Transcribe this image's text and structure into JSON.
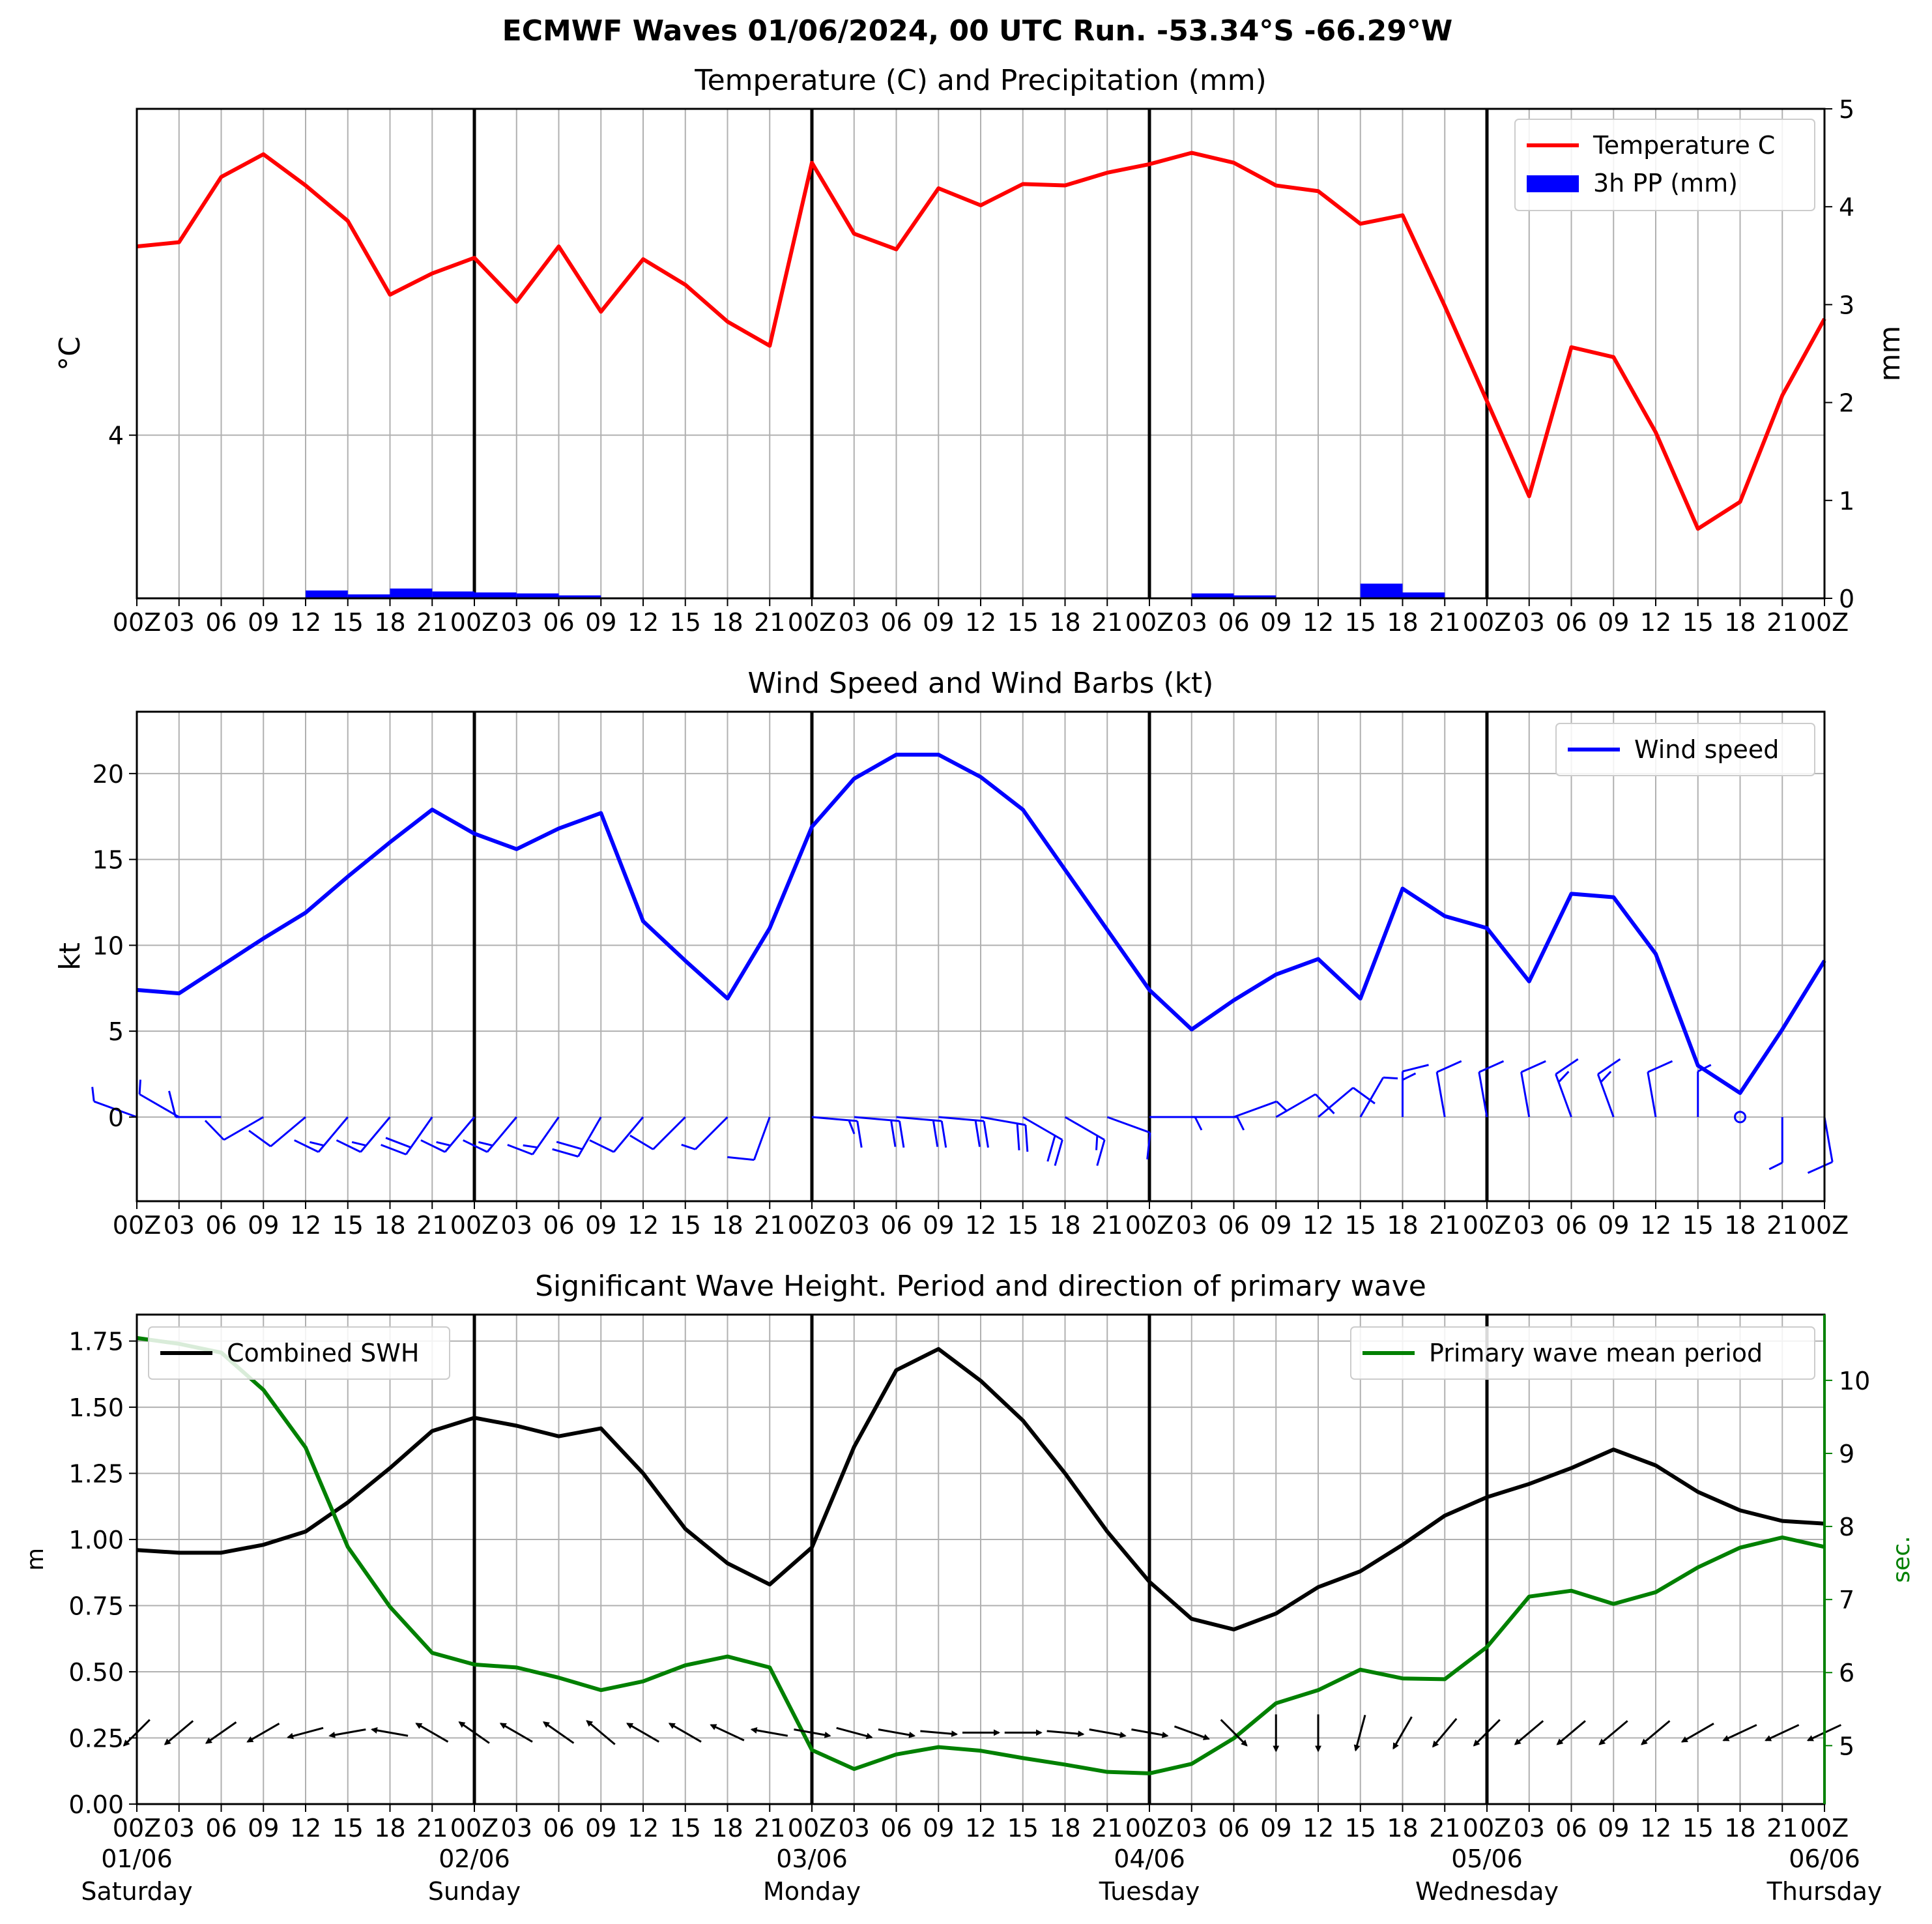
{
  "title": "ECMWF Waves 01/06/2024, 00 UTC Run. -53.34°S -66.29°W",
  "time_tick_labels": [
    "00Z",
    "03",
    "06",
    "09",
    "12",
    "15",
    "18",
    "21",
    "00Z",
    "03",
    "06",
    "09",
    "12",
    "15",
    "18",
    "21",
    "00Z",
    "03",
    "06",
    "09",
    "12",
    "15",
    "18",
    "21",
    "00Z",
    "03",
    "06",
    "09",
    "12",
    "15",
    "18",
    "21",
    "00Z",
    "03",
    "06",
    "09",
    "12",
    "15",
    "18",
    "21",
    "00Z"
  ],
  "day_labels": [
    {
      "hour": 0,
      "date": "01/06",
      "weekday": "Saturday"
    },
    {
      "hour": 24,
      "date": "02/06",
      "weekday": "Sunday"
    },
    {
      "hour": 48,
      "date": "03/06",
      "weekday": "Monday"
    },
    {
      "hour": 72,
      "date": "04/06",
      "weekday": "Tuesday"
    },
    {
      "hour": 96,
      "date": "05/06",
      "weekday": "Wednesday"
    },
    {
      "hour": 120,
      "date": "06/06",
      "weekday": "Thursday"
    }
  ],
  "chart_data": [
    {
      "type": "line",
      "title": "Temperature (C) and Precipitation (mm)",
      "ylabel": "°C",
      "ylabel_right": "mm",
      "x_hours": [
        0,
        3,
        6,
        9,
        12,
        15,
        18,
        21,
        24,
        27,
        30,
        33,
        36,
        39,
        42,
        45,
        48,
        51,
        54,
        57,
        60,
        63,
        66,
        69,
        72,
        75,
        78,
        81,
        84,
        87,
        90,
        93,
        96,
        99,
        102,
        105,
        108,
        111,
        114,
        117,
        120
      ],
      "ylim": [
        2.85,
        6.3
      ],
      "yticks": [
        4
      ],
      "ylim_right": [
        0,
        5
      ],
      "yticks_right": [
        0,
        1,
        2,
        3,
        4,
        5
      ],
      "legend": "top-right",
      "grid": true,
      "series": [
        {
          "name": "Temperature C",
          "color": "#ff0000",
          "axis": "left",
          "values": [
            5.33,
            5.36,
            5.82,
            5.98,
            5.76,
            5.51,
            4.99,
            5.14,
            5.25,
            4.94,
            5.33,
            4.87,
            5.24,
            5.06,
            4.8,
            4.63,
            5.92,
            5.42,
            5.31,
            5.74,
            5.62,
            5.77,
            5.76,
            5.85,
            5.91,
            5.99,
            5.92,
            5.76,
            5.72,
            5.49,
            5.55,
            4.91,
            4.24,
            3.57,
            4.62,
            4.55,
            4.02,
            3.34,
            3.53,
            4.28,
            4.82
          ]
        },
        {
          "name": "3h PP (mm)",
          "color": "#0000ff",
          "type": "bar",
          "axis": "right",
          "values": [
            0,
            0,
            0,
            0.01,
            0.08,
            0.04,
            0.1,
            0.07,
            0.06,
            0.05,
            0.03,
            0.01,
            0,
            0,
            0,
            0,
            0.01,
            0,
            0,
            0,
            0,
            0,
            0,
            0.01,
            0.01,
            0.05,
            0.03,
            0.01,
            0.01,
            0.15,
            0.06,
            0,
            0,
            0,
            0,
            0,
            0,
            0,
            0,
            0
          ]
        }
      ]
    },
    {
      "type": "line",
      "title": "Wind Speed and Wind Barbs (kt)",
      "ylabel": "kt",
      "x_hours": [
        0,
        3,
        6,
        9,
        12,
        15,
        18,
        21,
        24,
        27,
        30,
        33,
        36,
        39,
        42,
        45,
        48,
        51,
        54,
        57,
        60,
        63,
        66,
        69,
        72,
        75,
        78,
        81,
        84,
        87,
        90,
        93,
        96,
        99,
        102,
        105,
        108,
        111,
        114,
        117,
        120
      ],
      "ylim": [
        -4.9,
        23.6
      ],
      "yticks": [
        0,
        5,
        10,
        15,
        20
      ],
      "legend": "top-right",
      "grid": true,
      "series": [
        {
          "name": "Wind speed",
          "color": "#0000ff",
          "values": [
            7.4,
            7.2,
            8.8,
            10.4,
            11.9,
            14.0,
            16.0,
            17.9,
            16.5,
            15.6,
            16.8,
            17.7,
            11.4,
            9.1,
            6.9,
            11.0,
            16.9,
            19.7,
            21.1,
            21.1,
            19.8,
            17.9,
            14.4,
            10.9,
            7.4,
            5.1,
            6.8,
            8.3,
            9.2,
            6.9,
            13.3,
            11.7,
            11.0,
            7.9,
            13.0,
            12.8,
            9.5,
            3.0,
            1.4,
            5.1,
            9.1
          ]
        }
      ],
      "barb_directions_deg": [
        290,
        300,
        270,
        240,
        230,
        220,
        220,
        215,
        220,
        220,
        215,
        210,
        220,
        225,
        225,
        200,
        95,
        95,
        95,
        95,
        100,
        120,
        120,
        110,
        90,
        90,
        70,
        60,
        50,
        30,
        0,
        350,
        350,
        350,
        340,
        340,
        350,
        0,
        0,
        180,
        170
      ]
    },
    {
      "type": "line",
      "title": "Significant Wave Height. Period and direction of primary wave",
      "ylabel": "m",
      "ylabel_right": "sec.",
      "x_hours": [
        0,
        3,
        6,
        9,
        12,
        15,
        18,
        21,
        24,
        27,
        30,
        33,
        36,
        39,
        42,
        45,
        48,
        51,
        54,
        57,
        60,
        63,
        66,
        69,
        72,
        75,
        78,
        81,
        84,
        87,
        90,
        93,
        96,
        99,
        102,
        105,
        108,
        111,
        114,
        117,
        120
      ],
      "ylim": [
        0,
        1.85
      ],
      "yticks": [
        0.0,
        0.25,
        0.5,
        0.75,
        1.0,
        1.25,
        1.5,
        1.75
      ],
      "ylim_right": [
        4.2,
        10.9
      ],
      "yticks_right": [
        5,
        6,
        7,
        8,
        9,
        10
      ],
      "grid": true,
      "series": [
        {
          "name": "Combined SWH",
          "color": "#000000",
          "axis": "left",
          "legend": "top-left",
          "values": [
            0.96,
            0.95,
            0.95,
            0.98,
            1.03,
            1.14,
            1.27,
            1.41,
            1.46,
            1.43,
            1.39,
            1.42,
            1.25,
            1.04,
            0.91,
            0.83,
            0.97,
            1.35,
            1.64,
            1.72,
            1.6,
            1.45,
            1.25,
            1.03,
            0.84,
            0.7,
            0.66,
            0.72,
            0.82,
            0.88,
            0.98,
            1.09,
            1.16,
            1.21,
            1.27,
            1.34,
            1.28,
            1.18,
            1.11,
            1.07,
            1.06
          ]
        },
        {
          "name": "Primary wave mean period",
          "color": "#008000",
          "axis": "right",
          "legend": "top-right",
          "values": [
            10.58,
            10.5,
            10.38,
            9.87,
            9.08,
            7.72,
            6.9,
            6.27,
            6.11,
            6.07,
            5.93,
            5.76,
            5.88,
            6.1,
            6.22,
            6.07,
            4.94,
            4.68,
            4.88,
            4.98,
            4.93,
            4.83,
            4.74,
            4.64,
            4.62,
            4.75,
            5.1,
            5.58,
            5.76,
            6.04,
            5.92,
            5.91,
            6.35,
            7.04,
            7.12,
            6.94,
            7.1,
            7.44,
            7.71,
            7.85,
            7.72
          ]
        }
      ],
      "wave_arrow_directions_deg": [
        45,
        50,
        55,
        60,
        75,
        80,
        100,
        120,
        125,
        120,
        125,
        130,
        120,
        120,
        115,
        100,
        280,
        285,
        280,
        275,
        270,
        270,
        275,
        280,
        280,
        290,
        315,
        0,
        0,
        15,
        30,
        40,
        45,
        50,
        50,
        50,
        50,
        60,
        65,
        65,
        65
      ]
    }
  ]
}
